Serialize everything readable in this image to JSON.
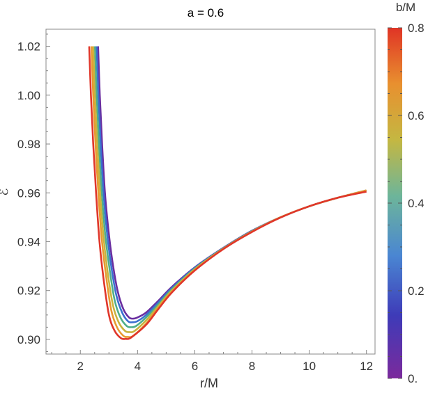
{
  "chart_data": {
    "type": "line",
    "title": "a = 0.6",
    "xlabel": "r/M",
    "ylabel": "ℰ",
    "xlim": [
      0.8,
      12.3
    ],
    "ylim": [
      0.894,
      1.027
    ],
    "xticks": [
      2,
      4,
      6,
      8,
      10,
      12
    ],
    "xtick_labels": [
      "2",
      "4",
      "6",
      "8",
      "10",
      "12"
    ],
    "yticks": [
      0.9,
      0.92,
      0.94,
      0.96,
      0.98,
      1.0,
      1.02
    ],
    "ytick_labels": [
      "0.90",
      "0.92",
      "0.94",
      "0.96",
      "0.98",
      "1.00",
      "1.02"
    ],
    "grid": false,
    "legend": {
      "type": "colorbar",
      "title": "b/M",
      "placement": "right",
      "range": [
        0,
        0.8
      ],
      "ticks": [
        0,
        0.2,
        0.4,
        0.6,
        0.8
      ],
      "tick_labels": [
        "0.",
        "0.2",
        "0.4",
        "0.6",
        "0.8"
      ],
      "colors": [
        "#7b2a9c",
        "#3e3bb8",
        "#4a86d2",
        "#6db59a",
        "#c4b742",
        "#e8902f",
        "#e03425"
      ]
    },
    "series": [
      {
        "b": 0.0,
        "color": "#6a2ea0",
        "x": [
          2.62,
          2.68,
          2.76,
          2.86,
          2.98,
          3.12,
          3.3,
          3.5,
          3.7,
          3.85,
          4.0,
          4.3,
          4.7,
          5.2,
          6.0,
          7.0,
          8.0,
          9.0,
          10.0,
          11.0,
          12.0
        ],
        "y": [
          1.02,
          1.0,
          0.98,
          0.96,
          0.945,
          0.932,
          0.92,
          0.9125,
          0.909,
          0.9085,
          0.909,
          0.911,
          0.9155,
          0.9215,
          0.9295,
          0.9375,
          0.9445,
          0.95,
          0.9545,
          0.958,
          0.961
        ]
      },
      {
        "b": 0.2,
        "color": "#3a6fd0",
        "x": [
          2.57,
          2.63,
          2.71,
          2.81,
          2.93,
          3.08,
          3.26,
          3.46,
          3.66,
          3.82,
          4.0,
          4.3,
          4.7,
          5.2,
          6.0,
          7.0,
          8.0,
          9.0,
          10.0,
          11.0,
          12.0
        ],
        "y": [
          1.02,
          1.0,
          0.98,
          0.96,
          0.944,
          0.93,
          0.918,
          0.911,
          0.9075,
          0.907,
          0.9075,
          0.91,
          0.9148,
          0.921,
          0.9293,
          0.9374,
          0.9444,
          0.95,
          0.9545,
          0.958,
          0.961
        ]
      },
      {
        "b": 0.4,
        "color": "#4fae8a",
        "x": [
          2.51,
          2.57,
          2.65,
          2.75,
          2.87,
          3.02,
          3.2,
          3.4,
          3.62,
          3.78,
          3.95,
          4.3,
          4.7,
          5.2,
          6.0,
          7.0,
          8.0,
          9.0,
          10.0,
          11.0,
          12.0
        ],
        "y": [
          1.02,
          1.0,
          0.98,
          0.96,
          0.943,
          0.929,
          0.916,
          0.909,
          0.9055,
          0.905,
          0.9055,
          0.909,
          0.914,
          0.9205,
          0.929,
          0.9373,
          0.9443,
          0.95,
          0.9545,
          0.958,
          0.961
        ]
      },
      {
        "b": 0.5,
        "color": "#c9b33e",
        "x": [
          2.45,
          2.51,
          2.59,
          2.69,
          2.81,
          2.96,
          3.14,
          3.34,
          3.56,
          3.72,
          3.9,
          4.3,
          4.7,
          5.2,
          6.0,
          7.0,
          8.0,
          9.0,
          10.0,
          11.0,
          12.0
        ],
        "y": [
          1.02,
          1.0,
          0.98,
          0.96,
          0.942,
          0.927,
          0.914,
          0.907,
          0.9035,
          0.903,
          0.9035,
          0.9078,
          0.9132,
          0.92,
          0.9287,
          0.9372,
          0.9442,
          0.95,
          0.9545,
          0.958,
          0.961
        ]
      },
      {
        "b": 0.6,
        "color": "#e89a30",
        "x": [
          2.39,
          2.45,
          2.53,
          2.63,
          2.75,
          2.9,
          3.08,
          3.28,
          3.5,
          3.66,
          3.85,
          4.3,
          4.7,
          5.2,
          6.0,
          7.0,
          8.0,
          9.0,
          10.0,
          11.0,
          12.0
        ],
        "y": [
          1.02,
          1.0,
          0.98,
          0.96,
          0.941,
          0.926,
          0.912,
          0.905,
          0.9015,
          0.901,
          0.9015,
          0.9065,
          0.9125,
          0.9195,
          0.9284,
          0.9371,
          0.9441,
          0.95,
          0.9545,
          0.958,
          0.961
        ]
      },
      {
        "b": 0.8,
        "color": "#e0362a",
        "x": [
          2.31,
          2.37,
          2.45,
          2.55,
          2.67,
          2.82,
          3.0,
          3.2,
          3.42,
          3.58,
          3.78,
          4.3,
          4.7,
          5.2,
          6.0,
          7.0,
          8.0,
          9.0,
          10.0,
          11.0,
          12.0
        ],
        "y": [
          1.02,
          1.0,
          0.98,
          0.96,
          0.94,
          0.924,
          0.91,
          0.9035,
          0.9005,
          0.9002,
          0.9008,
          0.906,
          0.912,
          0.9192,
          0.9282,
          0.937,
          0.944,
          0.9499,
          0.9545,
          0.958,
          0.9605
        ]
      }
    ]
  }
}
